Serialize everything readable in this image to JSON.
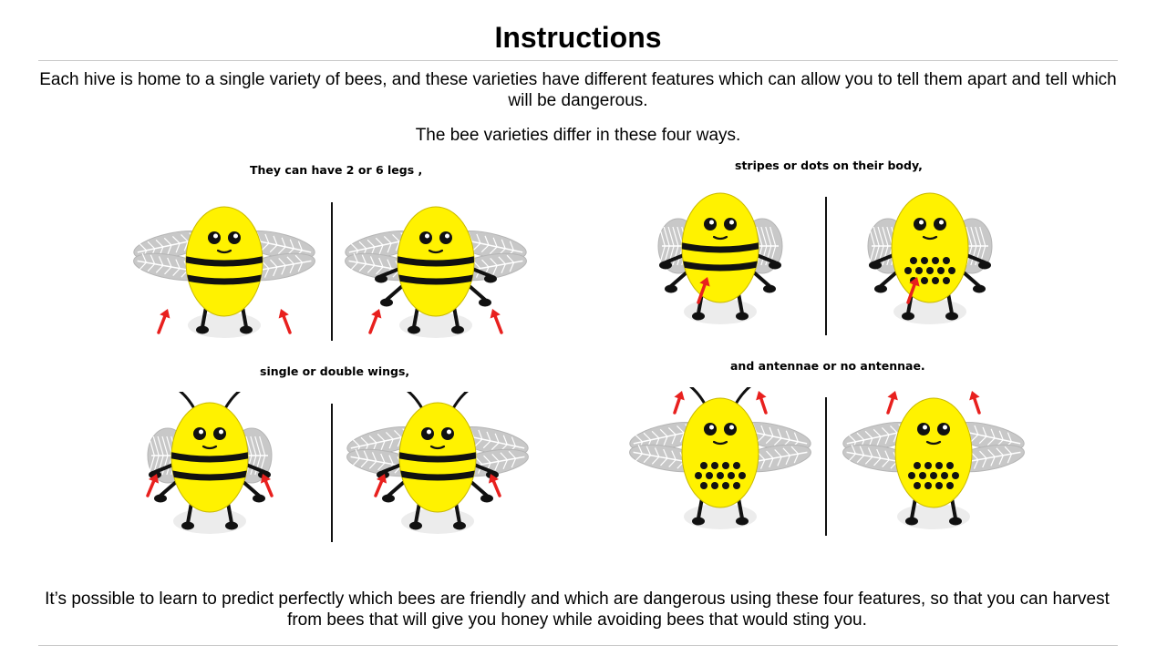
{
  "title": "Instructions",
  "intro": "Each hive is home to a single variety of bees, and these varieties have different features which can allow you to tell them apart and tell which will be dangerous.",
  "subintro": "The bee varieties differ in these four ways.",
  "captions": {
    "legs": "They can have 2 or 6 legs ,",
    "body": "stripes or dots on their body,",
    "wings": "single or double wings,",
    "antennae": "and antennae or no antennae."
  },
  "outro": "It’s possible to learn to predict perfectly which bees are friendly and which are dangerous using these four features, so that you can harvest from bees that will give you honey while avoiding bees that would sting you.",
  "colors": {
    "body": "#fff200",
    "stripe": "#111111",
    "wing": "#c8c8c8",
    "arrow": "#e8201e",
    "shadow": "#ececec"
  },
  "bees": [
    {
      "group": "legs",
      "legs": 2,
      "pattern": "stripes",
      "wings": "double",
      "antennae": false,
      "arrows": "legs"
    },
    {
      "group": "legs",
      "legs": 6,
      "pattern": "stripes",
      "wings": "double",
      "antennae": false,
      "arrows": "legs"
    },
    {
      "group": "body",
      "legs": 6,
      "pattern": "stripes",
      "wings": "single",
      "antennae": false,
      "arrows": "body"
    },
    {
      "group": "body",
      "legs": 6,
      "pattern": "dots",
      "wings": "single",
      "antennae": false,
      "arrows": "body"
    },
    {
      "group": "wings",
      "legs": 6,
      "pattern": "stripes",
      "wings": "single",
      "antennae": true,
      "arrows": "wings"
    },
    {
      "group": "wings",
      "legs": 6,
      "pattern": "stripes",
      "wings": "double",
      "antennae": true,
      "arrows": "wings"
    },
    {
      "group": "antennae",
      "legs": 2,
      "pattern": "dots",
      "wings": "double",
      "antennae": true,
      "arrows": "antennae"
    },
    {
      "group": "antennae",
      "legs": 2,
      "pattern": "dots",
      "wings": "double",
      "antennae": false,
      "arrows": "antennae"
    }
  ]
}
